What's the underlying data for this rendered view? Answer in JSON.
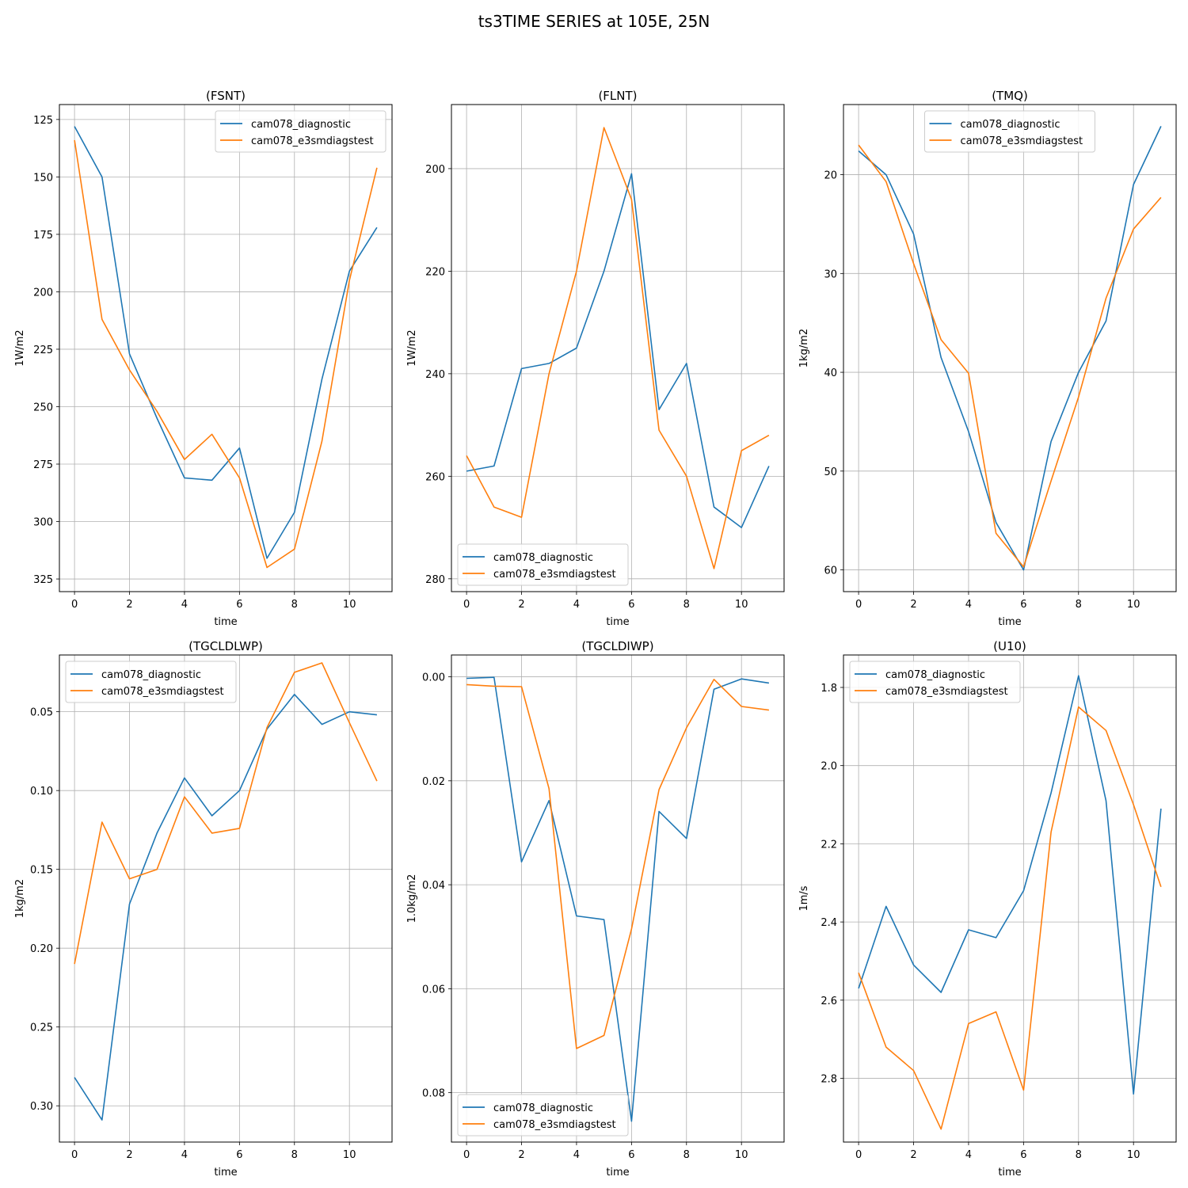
{
  "figure": {
    "title": "ts3TIME SERIES at 105E, 25N",
    "legend_labels": [
      "cam078_diagnostic",
      "cam078_e3smdiagstest"
    ],
    "colors": {
      "series1": "#1f77b4",
      "series2": "#ff7f0e",
      "grid": "#b0b0b0"
    }
  },
  "chart_data": [
    {
      "type": "line",
      "title": "(FSNT)",
      "xlabel": "time",
      "ylabel": "1W/m2",
      "xlim": [
        -0.55,
        11.55
      ],
      "ylim": [
        330.5,
        118.5
      ],
      "y_inverted": true,
      "xticks": [
        0,
        2,
        4,
        6,
        8,
        10
      ],
      "yticks": [
        125,
        150,
        175,
        200,
        225,
        250,
        275,
        300,
        325
      ],
      "ytick_labels": [
        "125",
        "150",
        "175",
        "200",
        "225",
        "250",
        "275",
        "300",
        "325"
      ],
      "grid": true,
      "legend_position": "upper right",
      "x": [
        0,
        1,
        2,
        3,
        4,
        5,
        6,
        7,
        8,
        9,
        10,
        11
      ],
      "series": [
        {
          "name": "cam078_diagnostic",
          "color": "#1f77b4",
          "values": [
            128,
            150,
            227,
            255,
            281,
            282,
            268,
            316,
            296,
            238,
            191,
            172
          ]
        },
        {
          "name": "cam078_e3smdiagstest",
          "color": "#ff7f0e",
          "values": [
            134,
            212,
            234,
            252,
            273,
            262,
            281,
            320,
            312,
            265,
            195,
            146
          ]
        }
      ]
    },
    {
      "type": "line",
      "title": "(FLNT)",
      "xlabel": "time",
      "ylabel": "1W/m2",
      "xlim": [
        -0.55,
        11.55
      ],
      "ylim": [
        282.5,
        187.5
      ],
      "y_inverted": true,
      "xticks": [
        0,
        2,
        4,
        6,
        8,
        10
      ],
      "yticks": [
        200,
        220,
        240,
        260,
        280
      ],
      "ytick_labels": [
        "200",
        "220",
        "240",
        "260",
        "280"
      ],
      "grid": true,
      "legend_position": "lower left",
      "x": [
        0,
        1,
        2,
        3,
        4,
        5,
        6,
        7,
        8,
        9,
        10,
        11
      ],
      "series": [
        {
          "name": "cam078_diagnostic",
          "color": "#1f77b4",
          "values": [
            259,
            258,
            239,
            238,
            235,
            220,
            201,
            247,
            238,
            266,
            270,
            258
          ]
        },
        {
          "name": "cam078_e3smdiagstest",
          "color": "#ff7f0e",
          "values": [
            256,
            266,
            268,
            240,
            220,
            192,
            206,
            251,
            260,
            278,
            255,
            252
          ]
        }
      ]
    },
    {
      "type": "line",
      "title": "(TMQ)",
      "xlabel": "time",
      "ylabel": "1kg/m2",
      "xlim": [
        -0.55,
        11.55
      ],
      "ylim": [
        62.2,
        12.9
      ],
      "y_inverted": true,
      "xticks": [
        0,
        2,
        4,
        6,
        8,
        10
      ],
      "yticks": [
        20,
        30,
        40,
        50,
        60
      ],
      "ytick_labels": [
        "20",
        "30",
        "40",
        "50",
        "60"
      ],
      "grid": true,
      "legend_position": "upper center",
      "x": [
        0,
        1,
        2,
        3,
        4,
        5,
        6,
        7,
        8,
        9,
        10,
        11
      ],
      "series": [
        {
          "name": "cam078_diagnostic",
          "color": "#1f77b4",
          "values": [
            17.6,
            20.0,
            26.0,
            38.5,
            46.0,
            55.2,
            60.0,
            47.0,
            40.0,
            34.8,
            21.0,
            15.1
          ]
        },
        {
          "name": "cam078_e3smdiagstest",
          "color": "#ff7f0e",
          "values": [
            17.0,
            20.7,
            29.0,
            36.7,
            40.1,
            56.3,
            59.7,
            51.0,
            42.5,
            32.5,
            25.5,
            22.3
          ]
        }
      ]
    },
    {
      "type": "line",
      "title": "(TGCLDLWP)",
      "xlabel": "time",
      "ylabel": "1kg/m2",
      "xlim": [
        -0.55,
        11.55
      ],
      "ylim": [
        0.323,
        0.014
      ],
      "y_inverted": true,
      "xticks": [
        0,
        2,
        4,
        6,
        8,
        10
      ],
      "yticks": [
        0.05,
        0.1,
        0.15,
        0.2,
        0.25,
        0.3
      ],
      "ytick_labels": [
        "0.05",
        "0.10",
        "0.15",
        "0.20",
        "0.25",
        "0.30"
      ],
      "grid": true,
      "legend_position": "upper left",
      "x": [
        0,
        1,
        2,
        3,
        4,
        5,
        6,
        7,
        8,
        9,
        10,
        11
      ],
      "series": [
        {
          "name": "cam078_diagnostic",
          "color": "#1f77b4",
          "values": [
            0.282,
            0.309,
            0.172,
            0.127,
            0.092,
            0.116,
            0.1,
            0.061,
            0.039,
            0.058,
            0.05,
            0.052
          ]
        },
        {
          "name": "cam078_e3smdiagstest",
          "color": "#ff7f0e",
          "values": [
            0.21,
            0.12,
            0.156,
            0.15,
            0.104,
            0.127,
            0.124,
            0.06,
            0.025,
            0.019,
            0.057,
            0.094
          ]
        }
      ]
    },
    {
      "type": "line",
      "title": "(TGCLDIWP)",
      "xlabel": "time",
      "ylabel": "1.0kg/m2",
      "xlim": [
        -0.55,
        11.55
      ],
      "ylim": [
        0.0895,
        -0.0042
      ],
      "y_inverted": true,
      "xticks": [
        0,
        2,
        4,
        6,
        8,
        10
      ],
      "yticks": [
        0.0,
        0.02,
        0.04,
        0.06,
        0.08
      ],
      "ytick_labels": [
        "0.00",
        "0.02",
        "0.04",
        "0.06",
        "0.08"
      ],
      "grid": true,
      "legend_position": "lower left",
      "x": [
        0,
        1,
        2,
        3,
        4,
        5,
        6,
        7,
        8,
        9,
        10,
        11
      ],
      "series": [
        {
          "name": "cam078_diagnostic",
          "color": "#1f77b4",
          "values": [
            0.0003,
            0.0001,
            0.0356,
            0.0238,
            0.046,
            0.0467,
            0.0855,
            0.0259,
            0.0311,
            0.0024,
            0.0004,
            0.0012
          ]
        },
        {
          "name": "cam078_e3smdiagstest",
          "color": "#ff7f0e",
          "values": [
            0.0015,
            0.0018,
            0.0019,
            0.0215,
            0.0715,
            0.069,
            0.0485,
            0.0217,
            0.0098,
            0.0005,
            0.0057,
            0.0064
          ]
        }
      ]
    },
    {
      "type": "line",
      "title": "(U10)",
      "xlabel": "time",
      "ylabel": "1m/s",
      "xlim": [
        -0.55,
        11.55
      ],
      "ylim": [
        2.963,
        1.717
      ],
      "y_inverted": true,
      "xticks": [
        0,
        2,
        4,
        6,
        8,
        10
      ],
      "yticks": [
        1.8,
        2.0,
        2.2,
        2.4,
        2.6,
        2.8
      ],
      "ytick_labels": [
        "1.8",
        "2.0",
        "2.2",
        "2.4",
        "2.6",
        "2.8"
      ],
      "grid": true,
      "legend_position": "upper left",
      "x": [
        0,
        1,
        2,
        3,
        4,
        5,
        6,
        7,
        8,
        9,
        10,
        11
      ],
      "series": [
        {
          "name": "cam078_diagnostic",
          "color": "#1f77b4",
          "values": [
            2.57,
            2.36,
            2.51,
            2.58,
            2.42,
            2.44,
            2.32,
            2.07,
            1.77,
            2.09,
            2.84,
            2.11
          ]
        },
        {
          "name": "cam078_e3smdiagstest",
          "color": "#ff7f0e",
          "values": [
            2.53,
            2.72,
            2.78,
            2.93,
            2.66,
            2.63,
            2.83,
            2.17,
            1.85,
            1.91,
            2.1,
            2.31
          ]
        }
      ]
    }
  ]
}
